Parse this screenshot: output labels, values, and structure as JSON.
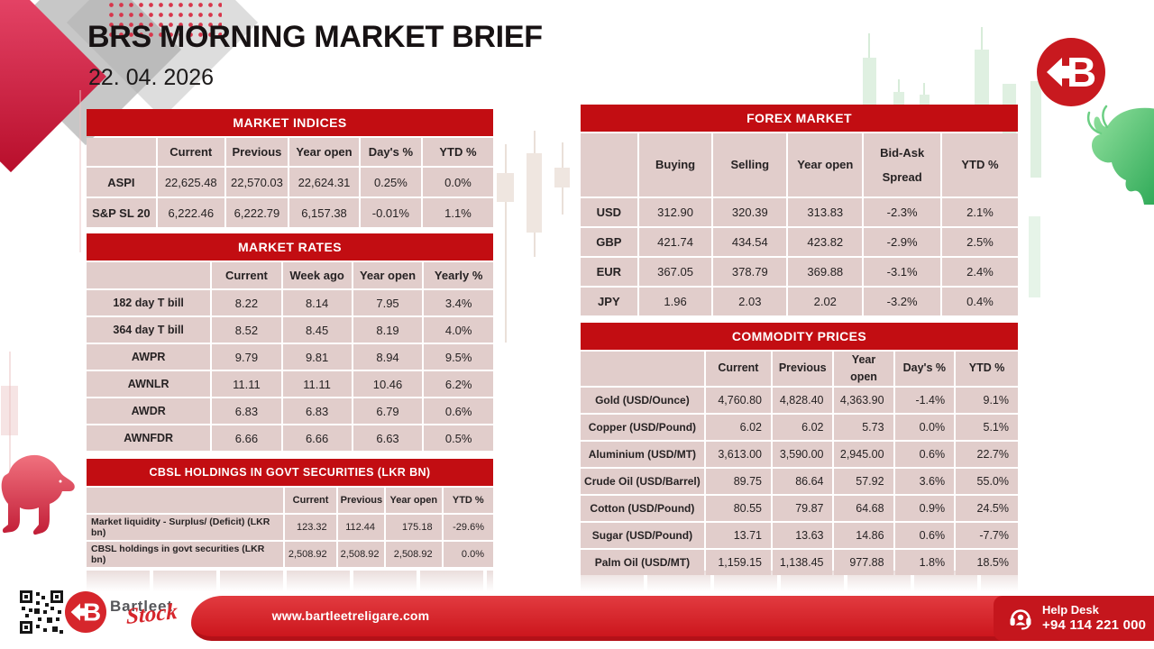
{
  "header": {
    "title": "BRS MORNING MARKET BRIEF",
    "date": "22. 04. 2026"
  },
  "tables": {
    "market_indices": {
      "title": "MARKET INDICES",
      "columns": [
        "",
        "Current",
        "Previous",
        "Year open",
        "Day's %",
        "YTD %"
      ],
      "rows": [
        {
          "label": "ASPI",
          "values": [
            "22,625.48",
            "22,570.03",
            "22,624.31",
            "0.25%",
            "0.0%"
          ]
        },
        {
          "label": "S&P SL 20",
          "values": [
            "6,222.46",
            "6,222.79",
            "6,157.38",
            "-0.01%",
            "1.1%"
          ]
        }
      ]
    },
    "market_rates": {
      "title": "MARKET RATES",
      "columns": [
        "",
        "Current",
        "Week ago",
        "Year open",
        "Yearly %"
      ],
      "rows": [
        {
          "label": "182 day T bill",
          "values": [
            "8.22",
            "8.14",
            "7.95",
            "3.4%"
          ]
        },
        {
          "label": "364 day T bill",
          "values": [
            "8.52",
            "8.45",
            "8.19",
            "4.0%"
          ]
        },
        {
          "label": "AWPR",
          "values": [
            "9.79",
            "9.81",
            "8.94",
            "9.5%"
          ]
        },
        {
          "label": "AWNLR",
          "values": [
            "11.11",
            "11.11",
            "10.46",
            "6.2%"
          ]
        },
        {
          "label": "AWDR",
          "values": [
            "6.83",
            "6.83",
            "6.79",
            "0.6%"
          ]
        },
        {
          "label": "AWNFDR",
          "values": [
            "6.66",
            "6.66",
            "6.63",
            "0.5%"
          ]
        }
      ]
    },
    "cbsl_holdings": {
      "title": "CBSL HOLDINGS IN GOVT SECURITIES (LKR BN)",
      "columns": [
        "",
        "Current",
        "Previous",
        "Year open",
        "YTD %"
      ],
      "rows": [
        {
          "label": "Market liquidity - Surplus/ (Deficit) (LKR bn)",
          "values": [
            "123.32",
            "112.44",
            "175.18",
            "-29.6%"
          ]
        },
        {
          "label": "CBSL holdings in govt securities (LKR bn)",
          "values": [
            "2,508.92",
            "2,508.92",
            "2,508.92",
            "0.0%"
          ]
        }
      ]
    },
    "forex": {
      "title": "FOREX MARKET",
      "columns": [
        "",
        "Buying",
        "Selling",
        "Year open",
        "Bid-Ask Spread",
        "YTD %"
      ],
      "rows": [
        {
          "label": "USD",
          "values": [
            "312.90",
            "320.39",
            "313.83",
            "-2.3%",
            "2.1%"
          ]
        },
        {
          "label": "GBP",
          "values": [
            "421.74",
            "434.54",
            "423.82",
            "-2.9%",
            "2.5%"
          ]
        },
        {
          "label": "EUR",
          "values": [
            "367.05",
            "378.79",
            "369.88",
            "-3.1%",
            "2.4%"
          ]
        },
        {
          "label": "JPY",
          "values": [
            "1.96",
            "2.03",
            "2.02",
            "-3.2%",
            "0.4%"
          ]
        }
      ]
    },
    "commodities": {
      "title": "COMMODITY PRICES",
      "columns": [
        "",
        "Current",
        "Previous",
        "Year open",
        "Day's %",
        "YTD %"
      ],
      "rows": [
        {
          "label": "Gold (USD/Ounce)",
          "values": [
            "4,760.80",
            "4,828.40",
            "4,363.90",
            "-1.4%",
            "9.1%"
          ]
        },
        {
          "label": "Copper (USD/Pound)",
          "values": [
            "6.02",
            "6.02",
            "5.73",
            "0.0%",
            "5.1%"
          ]
        },
        {
          "label": "Aluminium (USD/MT)",
          "values": [
            "3,613.00",
            "3,590.00",
            "2,945.00",
            "0.6%",
            "22.7%"
          ]
        },
        {
          "label": "Crude Oil (USD/Barrel)",
          "values": [
            "89.75",
            "86.64",
            "57.92",
            "3.6%",
            "55.0%"
          ]
        },
        {
          "label": "Cotton (USD/Pound)",
          "values": [
            "80.55",
            "79.87",
            "64.68",
            "0.9%",
            "24.5%"
          ]
        },
        {
          "label": "Sugar (USD/Pound)",
          "values": [
            "13.71",
            "13.63",
            "14.86",
            "0.6%",
            "-7.7%"
          ]
        },
        {
          "label": "Palm Oil (USD/MT)",
          "values": [
            "1,159.15",
            "1,138.45",
            "977.88",
            "1.8%",
            "18.5%"
          ]
        }
      ]
    }
  },
  "branding": {
    "logo_letter": "B",
    "brand_name": "Bartleet",
    "brand_sub": "Stock"
  },
  "footer": {
    "website": "www.bartleetreligare.com",
    "help_desk_label": "Help Desk",
    "help_desk_phone": "+94 114 221 000"
  },
  "colors": {
    "accent_red": "#C20D12",
    "cell_pink": "#E1CDCB",
    "footer_red": "#D6252B",
    "bull_green": "#4CBE6B",
    "bear_red": "#D84157"
  }
}
